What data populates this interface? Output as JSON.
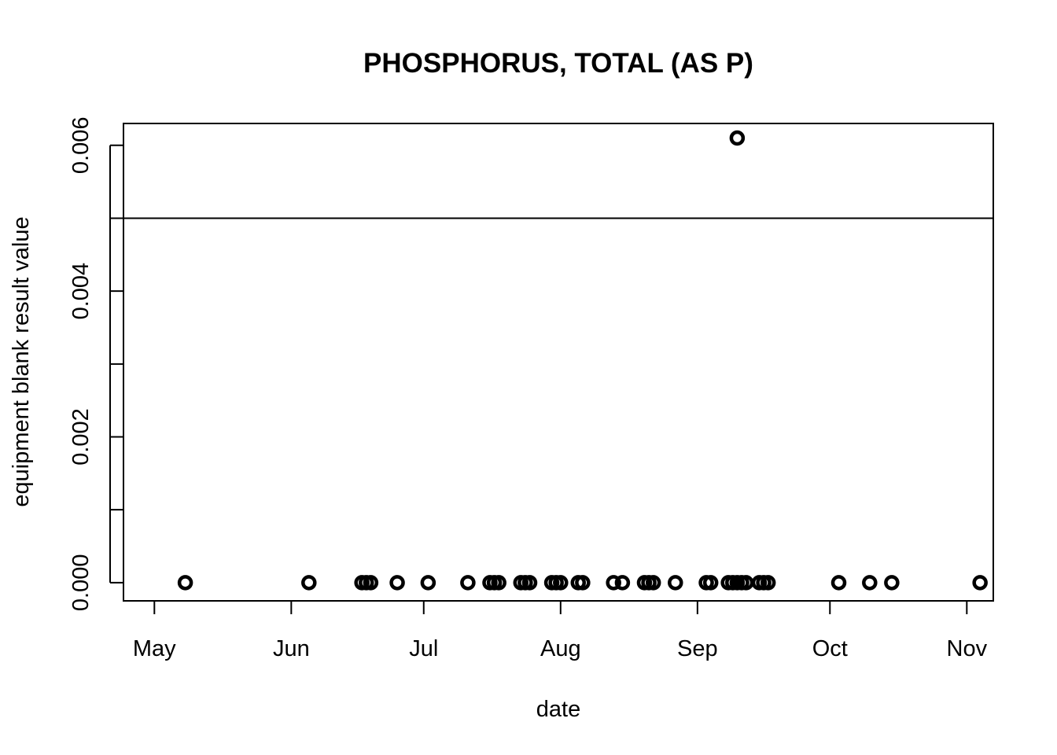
{
  "chart_data": {
    "type": "scatter",
    "title": "PHOSPHORUS, TOTAL (AS P)",
    "xlabel": "date",
    "ylabel": "equipment blank result value",
    "x_axis": {
      "kind": "date",
      "range": [
        "2023-04-24",
        "2023-11-07"
      ],
      "ticks": [
        {
          "date": "2023-05-01",
          "label": "May"
        },
        {
          "date": "2023-06-01",
          "label": "Jun"
        },
        {
          "date": "2023-07-01",
          "label": "Jul"
        },
        {
          "date": "2023-08-01",
          "label": "Aug"
        },
        {
          "date": "2023-09-01",
          "label": "Sep"
        },
        {
          "date": "2023-10-01",
          "label": "Oct"
        },
        {
          "date": "2023-11-01",
          "label": "Nov"
        }
      ]
    },
    "y_axis": {
      "range": [
        -0.00025,
        0.0063
      ],
      "ticks": [
        0,
        0.001,
        0.002,
        0.003,
        0.004,
        0.005,
        0.006
      ],
      "labeled_ticks": [
        "0.000",
        "0.002",
        "0.004",
        "0.006"
      ]
    },
    "reference_line": {
      "y": 0.005
    },
    "grid": false,
    "points": [
      {
        "x": "2023-05-08",
        "y": 0
      },
      {
        "x": "2023-06-05",
        "y": 0
      },
      {
        "x": "2023-06-17",
        "y": 0
      },
      {
        "x": "2023-06-18",
        "y": 0
      },
      {
        "x": "2023-06-19",
        "y": 0
      },
      {
        "x": "2023-06-25",
        "y": 0
      },
      {
        "x": "2023-07-02",
        "y": 0
      },
      {
        "x": "2023-07-11",
        "y": 0
      },
      {
        "x": "2023-07-16",
        "y": 0
      },
      {
        "x": "2023-07-17",
        "y": 0
      },
      {
        "x": "2023-07-18",
        "y": 0
      },
      {
        "x": "2023-07-23",
        "y": 0
      },
      {
        "x": "2023-07-24",
        "y": 0
      },
      {
        "x": "2023-07-25",
        "y": 0
      },
      {
        "x": "2023-07-30",
        "y": 0
      },
      {
        "x": "2023-07-31",
        "y": 0
      },
      {
        "x": "2023-08-01",
        "y": 0
      },
      {
        "x": "2023-08-05",
        "y": 0
      },
      {
        "x": "2023-08-06",
        "y": 0
      },
      {
        "x": "2023-08-13",
        "y": 0
      },
      {
        "x": "2023-08-15",
        "y": 0
      },
      {
        "x": "2023-08-20",
        "y": 0
      },
      {
        "x": "2023-08-21",
        "y": 0
      },
      {
        "x": "2023-08-22",
        "y": 0
      },
      {
        "x": "2023-08-27",
        "y": 0
      },
      {
        "x": "2023-09-03",
        "y": 0
      },
      {
        "x": "2023-09-04",
        "y": 0
      },
      {
        "x": "2023-09-08",
        "y": 0
      },
      {
        "x": "2023-09-09",
        "y": 0
      },
      {
        "x": "2023-09-10",
        "y": 0
      },
      {
        "x": "2023-09-11",
        "y": 0
      },
      {
        "x": "2023-09-12",
        "y": 0
      },
      {
        "x": "2023-09-10",
        "y": 0.0061
      },
      {
        "x": "2023-09-15",
        "y": 0
      },
      {
        "x": "2023-09-16",
        "y": 0
      },
      {
        "x": "2023-09-17",
        "y": 0
      },
      {
        "x": "2023-10-03",
        "y": 0
      },
      {
        "x": "2023-10-10",
        "y": 0
      },
      {
        "x": "2023-10-15",
        "y": 0
      },
      {
        "x": "2023-11-04",
        "y": 0
      }
    ]
  }
}
